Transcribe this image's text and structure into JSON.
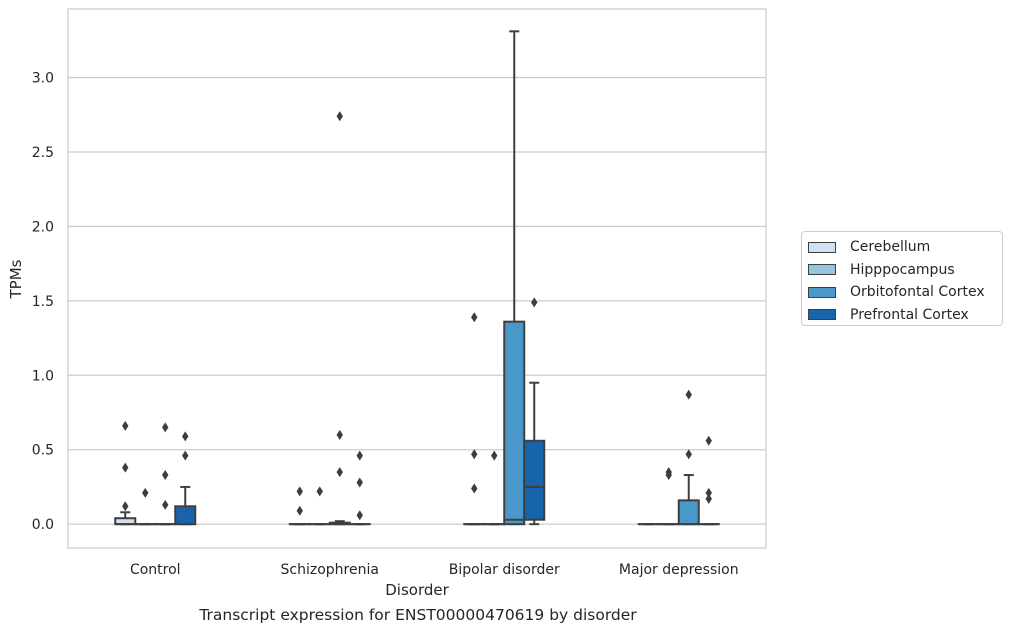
{
  "caption": "Transcript expression for ENST00000470619 by disorder",
  "legend": {
    "items": [
      {
        "label": "Cerebellum",
        "color": "#d0e1f2"
      },
      {
        "label": "Hipppocampus",
        "color": "#94c4df"
      },
      {
        "label": "Orbitofontal Cortex",
        "color": "#4a98c9"
      },
      {
        "label": "Prefrontal Cortex",
        "color": "#1764ab"
      }
    ],
    "placement": "right-outside"
  },
  "chart_data": {
    "type": "box",
    "xlabel": "Disorder",
    "ylabel": "TPMs",
    "ylim": [
      -0.16,
      3.46
    ],
    "yticks": [
      "0.0",
      "0.5",
      "1.0",
      "1.5",
      "2.0",
      "2.5",
      "3.0"
    ],
    "grid": "horizontal",
    "categories": [
      "Control",
      "Schizophrenia",
      "Bipolar disorder",
      "Major depression"
    ],
    "series": [
      {
        "name": "Cerebellum",
        "boxes": [
          {
            "q1": 0.0,
            "median": 0.0,
            "q3": 0.04,
            "whisker_low": 0.0,
            "whisker_high": 0.08,
            "outliers": [
              0.66,
              0.38,
              0.12
            ]
          },
          {
            "q1": 0.0,
            "median": 0.0,
            "q3": 0.0,
            "whisker_low": 0.0,
            "whisker_high": 0.0,
            "outliers": [
              0.22,
              0.09
            ]
          },
          {
            "q1": 0.0,
            "median": 0.0,
            "q3": 0.0,
            "whisker_low": 0.0,
            "whisker_high": 0.0,
            "outliers": [
              1.39,
              0.47,
              0.24
            ]
          },
          {
            "q1": 0.0,
            "median": 0.0,
            "q3": 0.0,
            "whisker_low": 0.0,
            "whisker_high": 0.0,
            "outliers": []
          }
        ]
      },
      {
        "name": "Hipppocampus",
        "boxes": [
          {
            "q1": 0.0,
            "median": 0.0,
            "q3": 0.0,
            "whisker_low": 0.0,
            "whisker_high": 0.0,
            "outliers": [
              0.21
            ]
          },
          {
            "q1": 0.0,
            "median": 0.0,
            "q3": 0.0,
            "whisker_low": 0.0,
            "whisker_high": 0.0,
            "outliers": [
              0.22
            ]
          },
          {
            "q1": 0.0,
            "median": 0.0,
            "q3": 0.0,
            "whisker_low": 0.0,
            "whisker_high": 0.0,
            "outliers": [
              0.46
            ]
          },
          {
            "q1": 0.0,
            "median": 0.0,
            "q3": 0.0,
            "whisker_low": 0.0,
            "whisker_high": 0.0,
            "outliers": [
              0.35,
              0.33
            ]
          }
        ]
      },
      {
        "name": "Orbitofontal Cortex",
        "boxes": [
          {
            "q1": 0.0,
            "median": 0.0,
            "q3": 0.0,
            "whisker_low": 0.0,
            "whisker_high": 0.0,
            "outliers": [
              0.65,
              0.33,
              0.13
            ]
          },
          {
            "q1": 0.0,
            "median": 0.0,
            "q3": 0.01,
            "whisker_low": 0.0,
            "whisker_high": 0.02,
            "outliers": [
              2.74,
              0.6,
              0.35
            ]
          },
          {
            "q1": 0.0,
            "median": 0.03,
            "q3": 1.36,
            "whisker_low": 0.0,
            "whisker_high": 3.31,
            "outliers": []
          },
          {
            "q1": 0.0,
            "median": 0.0,
            "q3": 0.16,
            "whisker_low": 0.0,
            "whisker_high": 0.33,
            "outliers": [
              0.87,
              0.47
            ]
          }
        ]
      },
      {
        "name": "Prefrontal Cortex",
        "boxes": [
          {
            "q1": 0.0,
            "median": 0.0,
            "q3": 0.12,
            "whisker_low": 0.0,
            "whisker_high": 0.25,
            "outliers": [
              0.59,
              0.46
            ]
          },
          {
            "q1": 0.0,
            "median": 0.0,
            "q3": 0.0,
            "whisker_low": 0.0,
            "whisker_high": 0.0,
            "outliers": [
              0.46,
              0.28,
              0.06
            ]
          },
          {
            "q1": 0.03,
            "median": 0.25,
            "q3": 0.56,
            "whisker_low": 0.0,
            "whisker_high": 0.95,
            "outliers": [
              1.49
            ]
          },
          {
            "q1": 0.0,
            "median": 0.0,
            "q3": 0.0,
            "whisker_low": 0.0,
            "whisker_high": 0.0,
            "outliers": [
              0.56,
              0.21,
              0.17
            ]
          }
        ]
      }
    ]
  }
}
